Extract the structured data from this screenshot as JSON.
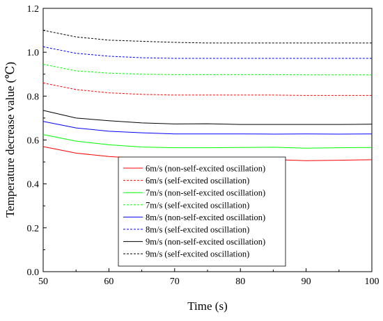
{
  "chart_data": {
    "type": "line",
    "xlabel": "Time (s)",
    "ylabel": "Temperature decrease value (℃)",
    "xlim": [
      50,
      100
    ],
    "ylim": [
      0.0,
      1.2
    ],
    "xticks": [
      "50",
      "60",
      "70",
      "80",
      "90",
      "100"
    ],
    "yticks": [
      "0.0",
      "0.2",
      "0.4",
      "0.6",
      "0.8",
      "1.0",
      "1.2"
    ],
    "grid": false,
    "legend_position": "bottom-center",
    "x": [
      50,
      55,
      60,
      65,
      70,
      75,
      80,
      85,
      90,
      95,
      100
    ],
    "series": [
      {
        "name": "6m/s (non-self-excited oscillation)",
        "color": "#ff0000",
        "dash": "solid",
        "values": [
          0.57,
          0.54,
          0.525,
          0.515,
          0.512,
          0.512,
          0.512,
          0.511,
          0.506,
          0.508,
          0.51
        ]
      },
      {
        "name": "6m/s (self-excited oscillation)",
        "color": "#ff0000",
        "dash": "dashed",
        "values": [
          0.86,
          0.83,
          0.815,
          0.808,
          0.805,
          0.805,
          0.805,
          0.805,
          0.803,
          0.803,
          0.803
        ]
      },
      {
        "name": "7m/s (non-self-excited oscillation)",
        "color": "#00ff00",
        "dash": "solid",
        "values": [
          0.625,
          0.595,
          0.578,
          0.568,
          0.565,
          0.565,
          0.566,
          0.567,
          0.563,
          0.565,
          0.566
        ]
      },
      {
        "name": "7m/s (self-excited oscillation)",
        "color": "#00ff00",
        "dash": "dashed",
        "values": [
          0.945,
          0.915,
          0.905,
          0.9,
          0.898,
          0.898,
          0.898,
          0.898,
          0.897,
          0.897,
          0.897
        ]
      },
      {
        "name": "8m/s (non-self-excited oscillation)",
        "color": "#0000ff",
        "dash": "solid",
        "values": [
          0.685,
          0.655,
          0.64,
          0.633,
          0.628,
          0.628,
          0.628,
          0.627,
          0.628,
          0.627,
          0.628
        ]
      },
      {
        "name": "8m/s (self-excited oscillation)",
        "color": "#0000ff",
        "dash": "dashed",
        "values": [
          1.025,
          0.995,
          0.982,
          0.975,
          0.972,
          0.972,
          0.972,
          0.972,
          0.972,
          0.972,
          0.972
        ]
      },
      {
        "name": "9m/s (non-self-excited oscillation)",
        "color": "#000000",
        "dash": "solid",
        "values": [
          0.735,
          0.7,
          0.688,
          0.678,
          0.673,
          0.674,
          0.671,
          0.671,
          0.671,
          0.671,
          0.672
        ]
      },
      {
        "name": "9m/s (self-excited oscillation)",
        "color": "#000000",
        "dash": "dashed",
        "values": [
          1.1,
          1.07,
          1.055,
          1.05,
          1.045,
          1.042,
          1.042,
          1.042,
          1.042,
          1.042,
          1.042
        ]
      }
    ]
  }
}
